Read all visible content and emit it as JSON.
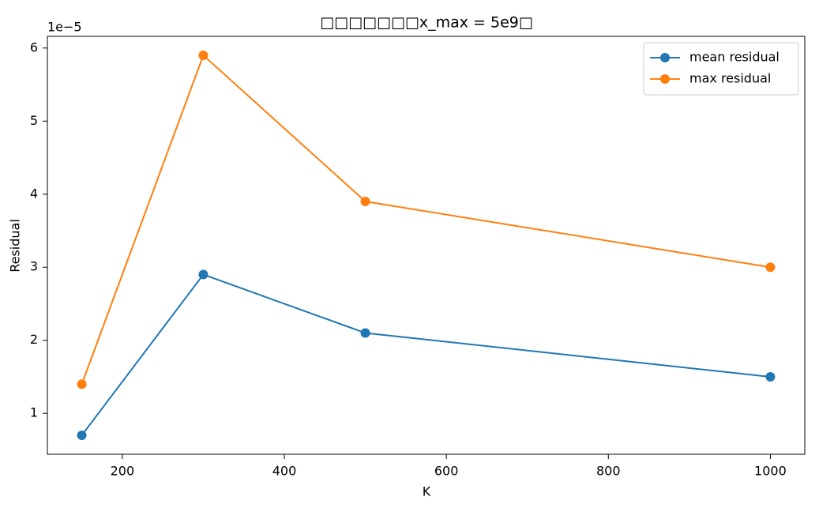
{
  "chart_data": {
    "type": "line",
    "title": "□□□□□□□x_max = 5e9□",
    "xlabel": "K",
    "ylabel": "Residual",
    "y_offset_label": "1e−5",
    "x": [
      150,
      300,
      500,
      1000
    ],
    "series": [
      {
        "name": "mean residual",
        "color": "#1f77b4",
        "values": [
          0.7,
          2.9,
          2.1,
          1.5
        ]
      },
      {
        "name": "max residual",
        "color": "#ff7f0e",
        "values": [
          1.4,
          5.9,
          3.9,
          3.0
        ]
      }
    ],
    "xlim": [
      107.5,
      1042.5
    ],
    "xticks": [
      200,
      400,
      600,
      800,
      1000
    ],
    "ylim": [
      0.44,
      6.16
    ],
    "yticks": [
      1,
      2,
      3,
      4,
      5,
      6
    ],
    "legend": "upper right",
    "grid": false
  }
}
